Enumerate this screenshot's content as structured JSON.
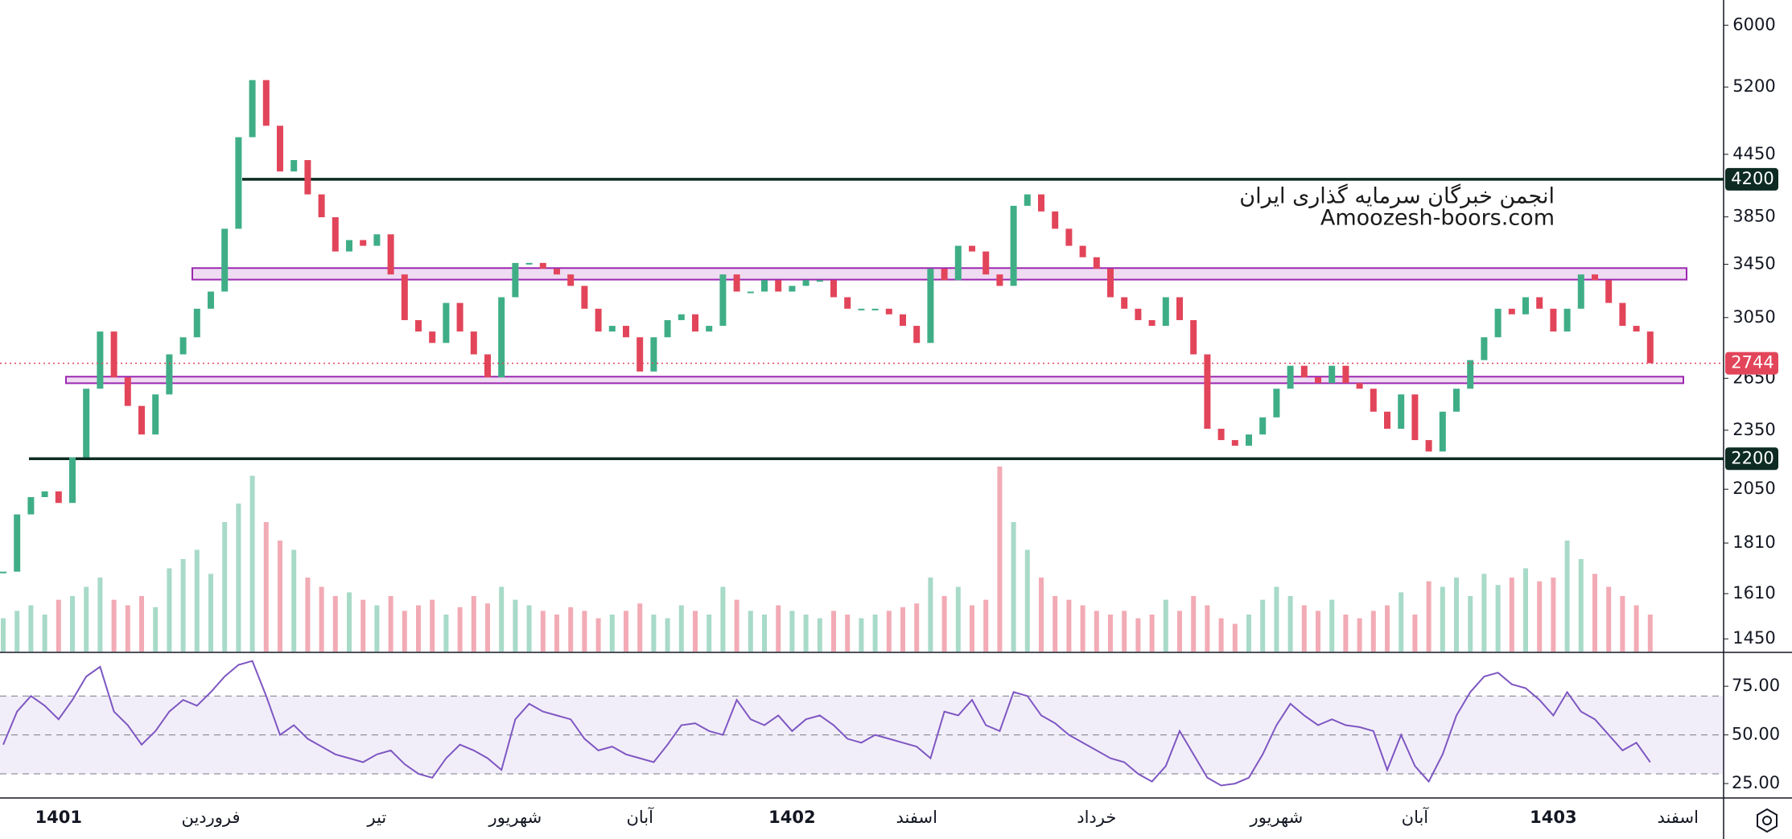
{
  "chart_data": {
    "type": "candlestick",
    "log_scale": true,
    "ylim": [
      1408,
      6360
    ],
    "yticks": [
      6000,
      5200,
      4450,
      3850,
      3450,
      3050,
      2650,
      2350,
      2050,
      1810,
      1610,
      1450
    ],
    "up_color": "#3fae86",
    "down_color": "#e2455a",
    "categories": [
      null,
      null,
      null,
      null,
      "1401",
      null,
      null,
      null,
      null,
      null,
      null,
      null,
      null,
      null,
      null,
      "فروردین",
      null,
      null,
      null,
      null,
      null,
      null,
      null,
      null,
      null,
      null,
      null,
      "تیر",
      null,
      null,
      null,
      null,
      null,
      null,
      null,
      null,
      null,
      "شهریور",
      null,
      null,
      null,
      null,
      null,
      null,
      null,
      null,
      "آبان",
      null,
      null,
      null,
      null,
      null,
      null,
      null,
      null,
      null,
      null,
      "1402",
      null,
      null,
      null,
      null,
      null,
      null,
      null,
      null,
      "اسفند",
      null,
      null,
      null,
      null,
      null,
      null,
      null,
      null,
      null,
      null,
      null,
      null,
      "خرداد",
      null,
      null,
      null,
      null,
      null,
      null,
      null,
      null,
      null,
      null,
      null,
      null,
      "شهریور",
      null,
      null,
      null,
      null,
      null,
      null,
      null,
      null,
      null,
      "آبان",
      null,
      null,
      null,
      null,
      null,
      null,
      null,
      null,
      null,
      "1403",
      null,
      null,
      null,
      null,
      null,
      null,
      null,
      null,
      "اسفند",
      null,
      null,
      null
    ],
    "close": [
      1694,
      1934,
      2013,
      2040,
      1986,
      2207,
      2587,
      2953,
      2656,
      2486,
      2327,
      2553,
      2801,
      2914,
      3113,
      3239,
      3746,
      4630,
      5284,
      4754,
      4277,
      4391,
      4056,
      3847,
      3554,
      3649,
      3601,
      3698,
      3370,
      3032,
      2953,
      2876,
      3155,
      2953,
      2801,
      2656,
      3197,
      3461,
      3461,
      3415,
      3370,
      3282,
      3113,
      2953,
      2992,
      2914,
      2692,
      2914,
      3032,
      3073,
      2953,
      2992,
      3370,
      3239,
      3239,
      3326,
      3239,
      3282,
      3326,
      3326,
      3197,
      3113,
      3113,
      3113,
      3073,
      2992,
      2876,
      3415,
      3326,
      3601,
      3554,
      3370,
      3282,
      3950,
      4056,
      3899,
      3746,
      3601,
      3507,
      3415,
      3197,
      3113,
      3032,
      2992,
      3197,
      3032,
      2801,
      2358,
      2297,
      2267,
      2327,
      2421,
      2587,
      2728,
      2656,
      2621,
      2728,
      2621,
      2587,
      2453,
      2358,
      2553,
      2297,
      2237,
      2453,
      2587,
      2764,
      2914,
      3113,
      3073,
      3197,
      3113,
      2953,
      3113,
      3370,
      3326,
      3155,
      2992,
      2953,
      2744,
      null,
      null,
      null,
      null,
      null
    ],
    "volume": [
      18,
      22,
      25,
      20,
      28,
      30,
      35,
      40,
      28,
      25,
      30,
      24,
      45,
      50,
      55,
      42,
      70,
      80,
      95,
      70,
      60,
      55,
      40,
      35,
      30,
      32,
      28,
      25,
      30,
      22,
      25,
      28,
      20,
      24,
      30,
      26,
      35,
      28,
      25,
      22,
      20,
      24,
      22,
      18,
      20,
      22,
      26,
      20,
      18,
      25,
      22,
      20,
      35,
      28,
      22,
      20,
      25,
      22,
      20,
      18,
      22,
      20,
      18,
      20,
      22,
      24,
      26,
      40,
      30,
      35,
      25,
      28,
      100,
      70,
      55,
      40,
      30,
      28,
      25,
      22,
      20,
      22,
      18,
      20,
      28,
      22,
      30,
      25,
      18,
      15,
      20,
      28,
      35,
      30,
      25,
      22,
      28,
      20,
      18,
      22,
      25,
      32,
      20,
      38,
      35,
      40,
      30,
      42,
      36,
      40,
      45,
      38,
      40,
      60,
      50,
      42,
      35,
      30,
      25,
      20,
      null,
      null,
      null,
      null,
      null
    ],
    "price_levels": [
      4200,
      2200
    ],
    "last_price": 2744,
    "zones": [
      {
        "low": 3330,
        "high": 3420
      },
      {
        "low": 2620,
        "high": 2660
      }
    ],
    "watermark": [
      "انجمن خبرگان سرمایه گذاری ایران",
      "Amoozesh-boors.com"
    ],
    "rsi": [
      45,
      62,
      70,
      65,
      58,
      68,
      80,
      85,
      62,
      55,
      45,
      52,
      62,
      68,
      65,
      72,
      80,
      86,
      88,
      70,
      50,
      55,
      48,
      44,
      40,
      38,
      36,
      40,
      42,
      35,
      30,
      28,
      38,
      45,
      42,
      38,
      32,
      58,
      66,
      62,
      60,
      58,
      48,
      42,
      44,
      40,
      38,
      36,
      45,
      55,
      56,
      52,
      50,
      68,
      58,
      55,
      60,
      52,
      58,
      60,
      55,
      48,
      46,
      50,
      48,
      46,
      44,
      38,
      62,
      60,
      68,
      55,
      52,
      72,
      70,
      60,
      56,
      50,
      46,
      42,
      38,
      36,
      30,
      26,
      34,
      52,
      40,
      28,
      24,
      25,
      28,
      40,
      55,
      66,
      60,
      55,
      58,
      55,
      54,
      52,
      32,
      50,
      34,
      26,
      40,
      60,
      72,
      80,
      82,
      76,
      74,
      68,
      60,
      72,
      62,
      58,
      50,
      42,
      46,
      36,
      null,
      null,
      null,
      null,
      null
    ],
    "rsi_color": "#7e57c2",
    "rsi_ylim": [
      18,
      92
    ],
    "rsi_yticks": [
      {
        "value": 75,
        "label": "75.00"
      },
      {
        "value": 50,
        "label": "50.00"
      },
      {
        "value": 25,
        "label": "25.00"
      }
    ],
    "rsi_levels": [
      30,
      50,
      70
    ]
  }
}
